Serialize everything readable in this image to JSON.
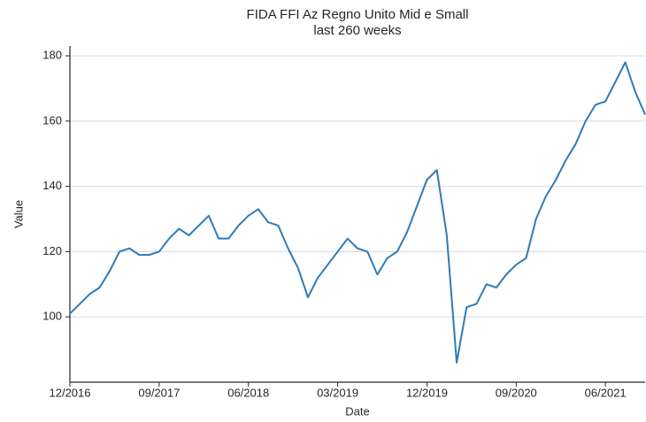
{
  "chart_data": {
    "type": "line",
    "title": "FIDA FFI Az Regno Unito Mid e Small",
    "subtitle": "last 260 weeks",
    "x_label": "Date",
    "y_label": "Value",
    "x": [
      "2016-12",
      "2017-01",
      "2017-02",
      "2017-03",
      "2017-04",
      "2017-05",
      "2017-06",
      "2017-07",
      "2017-08",
      "2017-09",
      "2017-10",
      "2017-11",
      "2017-12",
      "2018-01",
      "2018-02",
      "2018-03",
      "2018-04",
      "2018-05",
      "2018-06",
      "2018-07",
      "2018-08",
      "2018-09",
      "2018-10",
      "2018-11",
      "2018-12",
      "2019-01",
      "2019-02",
      "2019-03",
      "2019-04",
      "2019-05",
      "2019-06",
      "2019-07",
      "2019-08",
      "2019-09",
      "2019-10",
      "2019-11",
      "2019-12",
      "2020-01",
      "2020-02",
      "2020-03",
      "2020-04",
      "2020-05",
      "2020-06",
      "2020-07",
      "2020-08",
      "2020-09",
      "2020-10",
      "2020-11",
      "2020-12",
      "2021-01",
      "2021-02",
      "2021-03",
      "2021-04",
      "2021-05",
      "2021-06",
      "2021-07",
      "2021-08",
      "2021-09",
      "2021-10"
    ],
    "series": [
      {
        "name": "Value",
        "color": "#2f7bb6",
        "values": [
          101,
          104,
          107,
          109,
          114,
          120,
          121,
          119,
          119,
          120,
          124,
          127,
          125,
          128,
          131,
          124,
          124,
          128,
          131,
          133,
          129,
          128,
          121,
          115,
          106,
          112,
          116,
          120,
          124,
          121,
          120,
          113,
          118,
          120,
          126,
          134,
          142,
          145,
          125,
          86,
          103,
          104,
          110,
          109,
          113,
          116,
          118,
          130,
          137,
          142,
          148,
          153,
          160,
          165,
          166,
          172,
          178,
          169,
          162
        ]
      }
    ],
    "xlim": [
      "2016-12",
      "2021-10"
    ],
    "xticks": [
      {
        "value": "2016-12",
        "label": "12/2016"
      },
      {
        "value": "2017-09",
        "label": "09/2017"
      },
      {
        "value": "2018-06",
        "label": "06/2018"
      },
      {
        "value": "2019-03",
        "label": "03/2019"
      },
      {
        "value": "2019-12",
        "label": "12/2019"
      },
      {
        "value": "2020-09",
        "label": "09/2020"
      },
      {
        "value": "2021-06",
        "label": "06/2021"
      }
    ],
    "ylim": [
      80,
      183
    ],
    "yticks": [
      100,
      120,
      140,
      160,
      180
    ],
    "grid": true
  }
}
